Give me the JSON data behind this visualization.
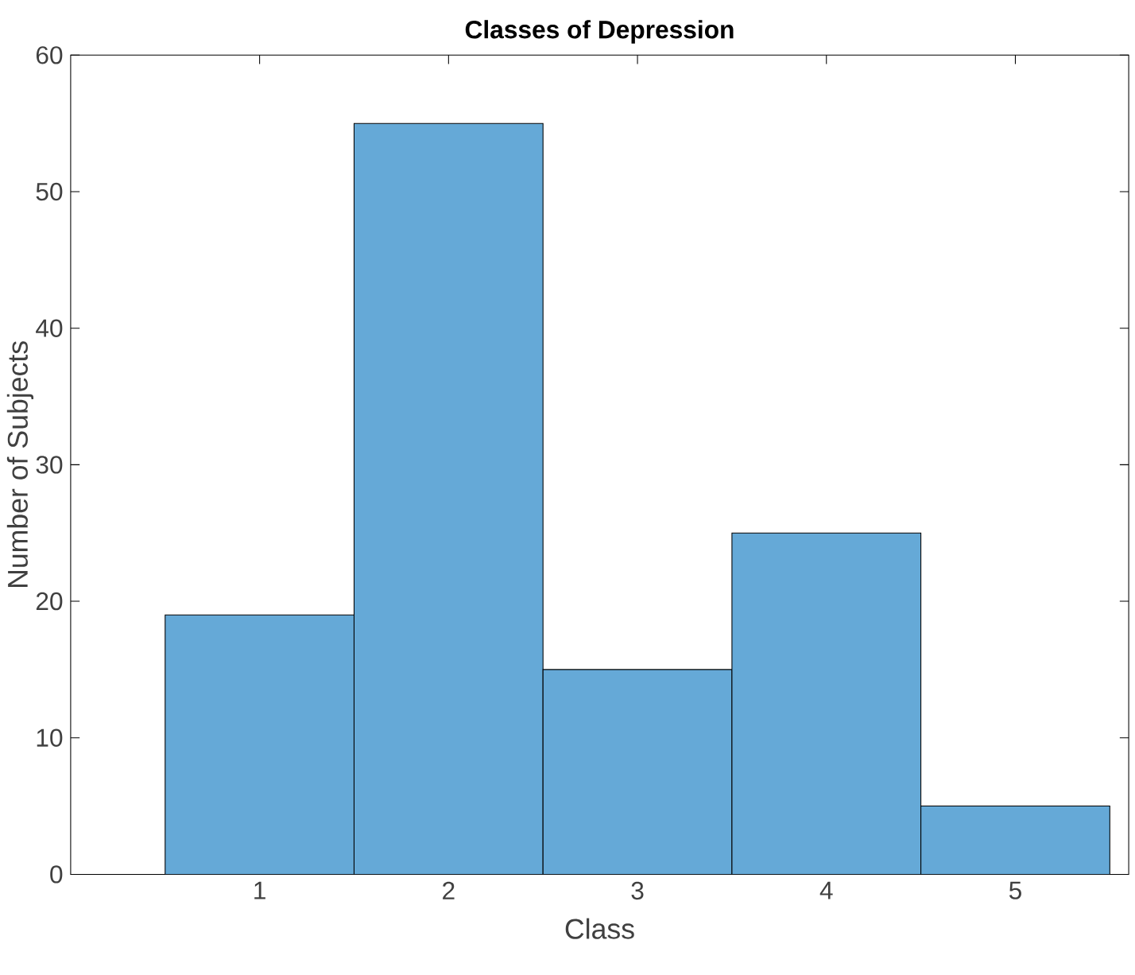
{
  "chart_data": {
    "type": "histogram",
    "title": "Classes of Depression",
    "xlabel": "Class",
    "ylabel": "Number of Subjects",
    "bins": [
      0.5,
      1.5,
      2.5,
      3.5,
      4.5,
      5.5
    ],
    "values": [
      19,
      55,
      15,
      25,
      5
    ],
    "color": "#65a9d7",
    "xlim": [
      0,
      5.6
    ],
    "xticks": [
      1,
      2,
      3,
      4,
      5
    ],
    "ylim": [
      0,
      60
    ],
    "yticks": [
      0,
      10,
      20,
      30,
      40,
      50,
      60
    ],
    "grid": false
  }
}
